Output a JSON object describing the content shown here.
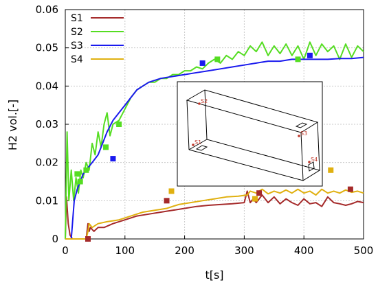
{
  "chart_data": {
    "type": "line",
    "xlabel": "t[s]",
    "ylabel": "H2 vol.[-]",
    "xlim": [
      0,
      500
    ],
    "ylim": [
      0,
      0.06
    ],
    "x_ticks": [
      "0",
      "100",
      "200",
      "300",
      "400",
      "500"
    ],
    "y_ticks": [
      "0",
      "0.01",
      "0.02",
      "0.03",
      "0.04",
      "0.05",
      "0.06"
    ],
    "legend_position": "top-left",
    "series": [
      {
        "name": "S1",
        "color": "#a52a2a",
        "x": [
          0,
          2,
          5,
          8,
          12,
          20,
          28,
          35,
          38,
          40,
          42,
          48,
          55,
          65,
          80,
          100,
          120,
          140,
          160,
          180,
          200,
          220,
          240,
          260,
          280,
          300,
          305,
          310,
          315,
          320,
          330,
          340,
          350,
          360,
          370,
          380,
          390,
          400,
          410,
          420,
          430,
          440,
          450,
          460,
          470,
          480,
          490,
          500
        ],
        "values": [
          0.0,
          0.011,
          0.004,
          0.001,
          0.0,
          0.0,
          0.0,
          0.0,
          0.004,
          0.002,
          0.003,
          0.002,
          0.003,
          0.003,
          0.004,
          0.005,
          0.006,
          0.0065,
          0.007,
          0.0075,
          0.008,
          0.0085,
          0.0088,
          0.009,
          0.0092,
          0.0095,
          0.0125,
          0.0095,
          0.0105,
          0.0095,
          0.0115,
          0.0095,
          0.011,
          0.0092,
          0.0105,
          0.0095,
          0.0088,
          0.0105,
          0.0092,
          0.0095,
          0.0085,
          0.011,
          0.0095,
          0.0092,
          0.0088,
          0.0092,
          0.0098,
          0.0095
        ]
      },
      {
        "name": "S2",
        "color": "#55dd22",
        "x": [
          0,
          3,
          6,
          10,
          14,
          18,
          22,
          26,
          30,
          35,
          40,
          45,
          50,
          55,
          60,
          65,
          70,
          75,
          80,
          90,
          100,
          110,
          120,
          130,
          140,
          150,
          160,
          170,
          180,
          190,
          200,
          210,
          220,
          230,
          240,
          250,
          260,
          270,
          280,
          290,
          300,
          310,
          320,
          330,
          340,
          350,
          360,
          370,
          380,
          390,
          400,
          410,
          420,
          430,
          440,
          450,
          460,
          470,
          480,
          490,
          500
        ],
        "values": [
          0.0,
          0.028,
          0.01,
          0.018,
          0.01,
          0.016,
          0.012,
          0.018,
          0.016,
          0.02,
          0.018,
          0.025,
          0.022,
          0.028,
          0.024,
          0.03,
          0.033,
          0.027,
          0.03,
          0.031,
          0.034,
          0.037,
          0.039,
          0.04,
          0.041,
          0.041,
          0.042,
          0.042,
          0.043,
          0.043,
          0.044,
          0.044,
          0.045,
          0.0445,
          0.046,
          0.047,
          0.046,
          0.048,
          0.047,
          0.049,
          0.048,
          0.0505,
          0.049,
          0.0515,
          0.048,
          0.0505,
          0.0485,
          0.051,
          0.048,
          0.0505,
          0.047,
          0.0515,
          0.048,
          0.051,
          0.049,
          0.0505,
          0.047,
          0.051,
          0.0475,
          0.0505,
          0.049
        ]
      },
      {
        "name": "S3",
        "color": "#1a1aee",
        "x": [
          0,
          10,
          15,
          20,
          25,
          30,
          35,
          40,
          45,
          50,
          55,
          60,
          70,
          80,
          90,
          100,
          110,
          120,
          130,
          140,
          160,
          180,
          200,
          220,
          240,
          260,
          280,
          300,
          320,
          340,
          360,
          380,
          400,
          420,
          440,
          460,
          480,
          500
        ],
        "values": [
          0.0,
          0.0,
          0.01,
          0.013,
          0.015,
          0.017,
          0.018,
          0.019,
          0.02,
          0.021,
          0.022,
          0.024,
          0.028,
          0.031,
          0.033,
          0.035,
          0.037,
          0.039,
          0.04,
          0.041,
          0.042,
          0.0425,
          0.043,
          0.0435,
          0.044,
          0.0445,
          0.045,
          0.0455,
          0.046,
          0.0465,
          0.0465,
          0.047,
          0.047,
          0.047,
          0.047,
          0.0472,
          0.0472,
          0.0475
        ]
      },
      {
        "name": "S4",
        "color": "#e0b010",
        "x": [
          0,
          20,
          35,
          38,
          40,
          45,
          55,
          70,
          90,
          110,
          130,
          150,
          170,
          190,
          210,
          230,
          250,
          270,
          290,
          305,
          310,
          320,
          330,
          340,
          350,
          360,
          370,
          380,
          390,
          400,
          410,
          420,
          430,
          440,
          450,
          460,
          470,
          480,
          490,
          500
        ],
        "values": [
          0.0,
          0.0,
          0.0,
          0.002,
          0.004,
          0.003,
          0.004,
          0.0045,
          0.005,
          0.006,
          0.007,
          0.0075,
          0.008,
          0.009,
          0.0095,
          0.01,
          0.0105,
          0.011,
          0.0112,
          0.0115,
          0.0125,
          0.012,
          0.013,
          0.0118,
          0.0125,
          0.012,
          0.0128,
          0.012,
          0.013,
          0.012,
          0.0125,
          0.0115,
          0.013,
          0.012,
          0.0125,
          0.012,
          0.0128,
          0.0122,
          0.0125,
          0.012
        ]
      }
    ],
    "markers": [
      {
        "series": "S1",
        "x": [
          38,
          170,
          325,
          478
        ],
        "values": [
          0.0,
          0.01,
          0.012,
          0.013
        ]
      },
      {
        "series": "S2",
        "x": [
          20,
          25,
          35,
          68,
          90,
          255,
          390
        ],
        "values": [
          0.017,
          0.015,
          0.018,
          0.024,
          0.03,
          0.047,
          0.047
        ]
      },
      {
        "series": "S3",
        "x": [
          80,
          230,
          410
        ],
        "values": [
          0.021,
          0.046,
          0.048
        ]
      },
      {
        "series": "S4",
        "x": [
          178,
          318,
          445
        ],
        "values": [
          0.0125,
          0.0105,
          0.018
        ]
      }
    ],
    "inset": {
      "labels": [
        "S1",
        "S2",
        "S3",
        "S4"
      ]
    }
  }
}
